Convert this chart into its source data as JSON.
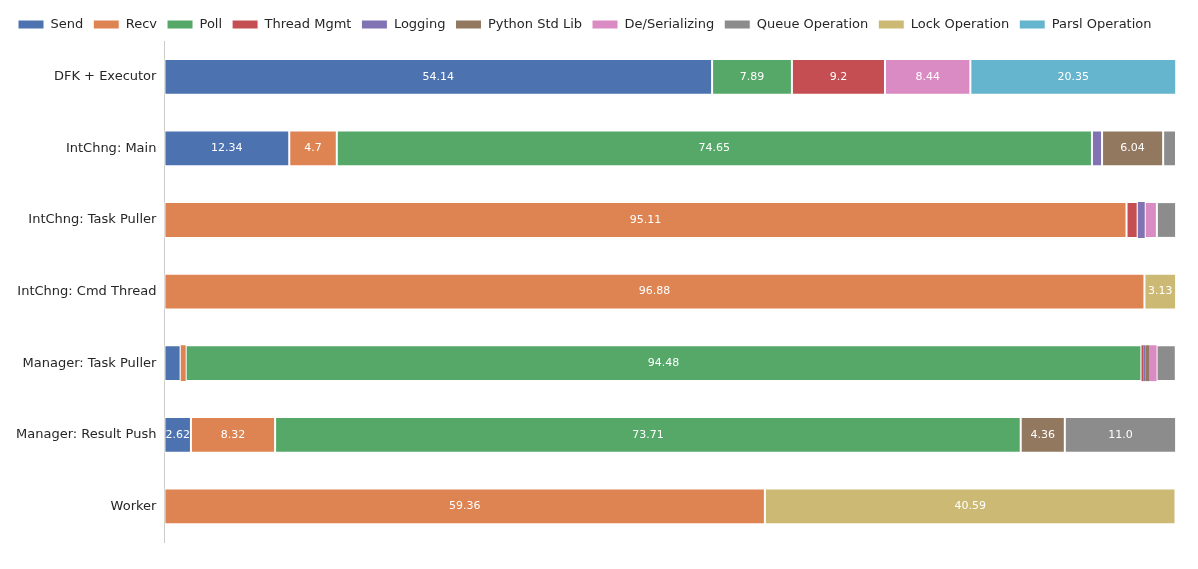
{
  "chart_data": {
    "type": "bar",
    "orientation": "horizontal",
    "stacked": true,
    "legend": "top",
    "tick_labels": "y",
    "grid": false,
    "xlim": [
      0,
      100
    ],
    "categories": [
      "DFK + Executor",
      "IntChng: Main",
      "IntChng: Task Puller",
      "IntChng: Cmd Thread",
      "Manager: Task Puller",
      "Manager: Result Push",
      "Worker"
    ],
    "series": [
      {
        "name": "Send",
        "color": "#4c72b0",
        "values": [
          54.14,
          12.34,
          null,
          null,
          1.6,
          2.62,
          null
        ],
        "value_labels": [
          "54.14",
          "12.34",
          null,
          null,
          null,
          "2.62",
          null
        ]
      },
      {
        "name": "Recv",
        "color": "#dd8452",
        "values": [
          null,
          4.7,
          95.11,
          96.88,
          0.5,
          8.32,
          59.36
        ],
        "value_labels": [
          null,
          "4.7",
          "95.11",
          "96.88",
          null,
          "8.32",
          "59.36"
        ]
      },
      {
        "name": "Poll",
        "color": "#55a868",
        "values": [
          7.89,
          74.65,
          null,
          null,
          94.48,
          73.71,
          null
        ],
        "value_labels": [
          "7.89",
          "74.65",
          null,
          null,
          "94.48",
          "73.71",
          null
        ]
      },
      {
        "name": "Thread Mgmt",
        "color": "#c44e52",
        "values": [
          9.2,
          null,
          1.1,
          null,
          0.2,
          null,
          null
        ],
        "value_labels": [
          "9.2",
          null,
          null,
          null,
          null,
          null,
          null
        ]
      },
      {
        "name": "Logging",
        "color": "#8172b3",
        "values": [
          null,
          1.0,
          0.7,
          null,
          0.2,
          null,
          null
        ]
      },
      {
        "name": "Python Std Lib",
        "color": "#937860",
        "values": [
          null,
          6.04,
          null,
          null,
          0.4,
          4.36,
          null
        ],
        "value_labels": [
          null,
          "6.04",
          null,
          null,
          null,
          "4.36",
          null
        ]
      },
      {
        "name": "De/Serializing",
        "color": "#da8bc3",
        "values": [
          8.44,
          null,
          1.2,
          null,
          0.7,
          null,
          null
        ],
        "value_labels": [
          "8.44",
          null,
          null,
          null,
          null,
          null,
          null
        ]
      },
      {
        "name": "Queue Operation",
        "color": "#8c8c8c",
        "values": [
          null,
          1.27,
          1.9,
          null,
          1.9,
          11.0,
          null
        ],
        "value_labels": [
          null,
          null,
          null,
          null,
          null,
          "11.0",
          null
        ]
      },
      {
        "name": "Lock Operation",
        "color": "#ccb974",
        "values": [
          null,
          null,
          null,
          3.13,
          null,
          null,
          40.59
        ],
        "value_labels": [
          null,
          null,
          null,
          "3.13",
          null,
          null,
          "40.59"
        ]
      },
      {
        "name": "Parsl Operation",
        "color": "#64b5cd",
        "values": [
          20.35,
          null,
          null,
          null,
          null,
          null,
          null
        ],
        "value_labels": [
          "20.35",
          null,
          null,
          null,
          null,
          null,
          null
        ]
      }
    ]
  }
}
